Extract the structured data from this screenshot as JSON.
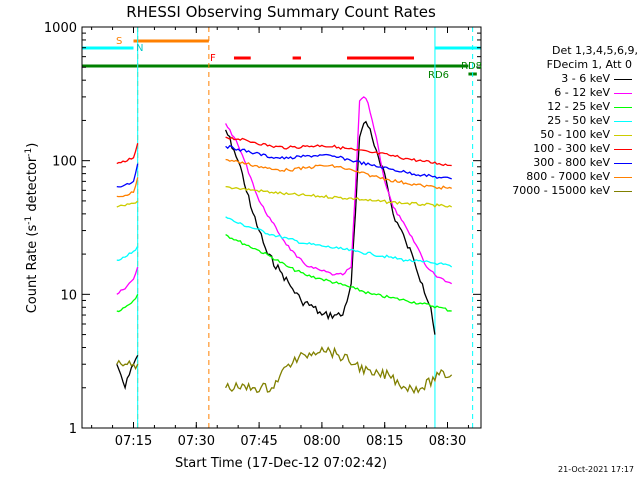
{
  "chart_data": {
    "type": "line",
    "title": "RHESSI Observing Summary Count Rates",
    "xlabel": "Start Time (17-Dec-12 07:02:42)",
    "ylabel": "Count Rate (s",
    "ylabel_sup": "-1",
    "ylabel_tail": " detector",
    "ylabel_close": ")",
    "y_scale": "log",
    "ylim": [
      1,
      1000
    ],
    "xlim": [
      "07:02:42",
      "08:38:00"
    ],
    "x_ticks": [
      "07:15",
      "07:30",
      "07:45",
      "08:00",
      "08:15",
      "08:30"
    ],
    "y_ticks": [
      "1",
      "10",
      "100",
      "1000"
    ],
    "legend_header": [
      "Det 1,3,4,5,6,9,",
      "FDecim 1, Att 0"
    ],
    "timestamp": "21-Oct-2021 17:17",
    "flags": {
      "S": {
        "label": "S",
        "color": "#ff8000",
        "start": "07:15",
        "end": "07:33"
      },
      "N": {
        "label": "N",
        "color": "#00ffff",
        "start": "07:02",
        "end": "07:15"
      },
      "F": {
        "label": "F",
        "color": "#ff0000",
        "segments": [
          [
            "07:39",
            "07:43"
          ],
          [
            "07:53",
            "07:55"
          ],
          [
            "08:06",
            "08:22"
          ]
        ]
      },
      "RD8": {
        "label": "RD8",
        "color": "#008000",
        "start": "07:02",
        "end": "08:35"
      },
      "RD6": {
        "label": "RD6",
        "color": "#008000",
        "start": "08:35",
        "end": "08:37"
      }
    },
    "markers": {
      "orange_dashed": [
        "07:16",
        "07:33"
      ],
      "cyan_solid": [
        "07:16",
        "08:27"
      ],
      "cyan_dashed": [
        "08:36"
      ]
    },
    "series": [
      {
        "name": "3 - 6 keV",
        "color": "#000000",
        "x": [
          "07:11",
          "07:12",
          "07:13",
          "07:14",
          "07:15",
          "07:16",
          "07:37",
          "07:39",
          "07:41",
          "07:43",
          "07:45",
          "07:47",
          "07:50",
          "07:53",
          "07:55",
          "07:58",
          "08:00",
          "08:03",
          "08:05",
          "08:07",
          "08:08",
          "08:09",
          "08:10",
          "08:11",
          "08:13",
          "08:15",
          "08:17",
          "08:20",
          "08:22",
          "08:24",
          "08:26",
          "08:27"
        ],
        "y": [
          3,
          2.5,
          2,
          2.5,
          3,
          3.5,
          170,
          120,
          80,
          45,
          30,
          20,
          15,
          11,
          9,
          8,
          7,
          7,
          7,
          12,
          40,
          150,
          190,
          180,
          120,
          80,
          40,
          25,
          18,
          12,
          8,
          5
        ]
      },
      {
        "name": "6 - 12 keV",
        "color": "#ff00ff",
        "x": [
          "07:11",
          "07:13",
          "07:15",
          "07:16",
          "07:37",
          "07:39",
          "07:41",
          "07:43",
          "07:45",
          "07:48",
          "07:51",
          "07:54",
          "07:57",
          "08:00",
          "08:03",
          "08:05",
          "08:07",
          "08:08",
          "08:09",
          "08:10",
          "08:11",
          "08:13",
          "08:15",
          "08:17",
          "08:19",
          "08:21",
          "08:23",
          "08:25",
          "08:27",
          "08:29",
          "08:31"
        ],
        "y": [
          10,
          11,
          13,
          16,
          190,
          150,
          110,
          75,
          50,
          35,
          25,
          19,
          16,
          15,
          14,
          14,
          16,
          60,
          280,
          300,
          270,
          150,
          70,
          45,
          36,
          28,
          22,
          16,
          14,
          13,
          12
        ]
      },
      {
        "name": "12 - 25 keV",
        "color": "#00ff00",
        "x": [
          "07:11",
          "07:13",
          "07:15",
          "07:16",
          "07:37",
          "07:40",
          "07:44",
          "07:48",
          "07:52",
          "07:56",
          "08:00",
          "08:04",
          "08:08",
          "08:12",
          "08:16",
          "08:20",
          "08:24",
          "08:28",
          "08:31"
        ],
        "y": [
          7.5,
          8,
          9,
          10,
          28,
          25,
          22,
          19,
          16,
          14,
          13,
          12,
          11,
          10,
          9.5,
          9,
          8.5,
          8,
          7.5
        ]
      },
      {
        "name": "25 - 50 keV",
        "color": "#00ffff",
        "x": [
          "07:11",
          "07:13",
          "07:15",
          "07:16",
          "07:37",
          "07:40",
          "07:44",
          "07:48",
          "07:52",
          "07:56",
          "08:00",
          "08:04",
          "08:08",
          "08:12",
          "08:16",
          "08:20",
          "08:24",
          "08:28",
          "08:31"
        ],
        "y": [
          18,
          19,
          21,
          23,
          38,
          34,
          31,
          28,
          26,
          24,
          23,
          22,
          21,
          20,
          19,
          18,
          17.5,
          17,
          16
        ]
      },
      {
        "name": "50 - 100 keV",
        "color": "#cccc00",
        "x": [
          "07:11",
          "07:13",
          "07:15",
          "07:16",
          "07:37",
          "07:40",
          "07:44",
          "07:48",
          "07:52",
          "07:56",
          "08:00",
          "08:04",
          "08:08",
          "08:12",
          "08:16",
          "08:20",
          "08:24",
          "08:28",
          "08:31"
        ],
        "y": [
          45,
          46,
          48,
          50,
          64,
          62,
          60,
          58,
          56,
          55,
          54,
          53,
          52,
          50,
          49,
          48,
          47,
          46,
          45
        ]
      },
      {
        "name": "100 - 300 keV",
        "color": "#ff0000",
        "x": [
          "07:11",
          "07:13",
          "07:15",
          "07:16",
          "07:37",
          "07:40",
          "07:44",
          "07:48",
          "07:52",
          "07:56",
          "08:00",
          "08:04",
          "08:08",
          "08:12",
          "08:16",
          "08:20",
          "08:24",
          "08:28",
          "08:31"
        ],
        "y": [
          95,
          98,
          105,
          135,
          150,
          145,
          137,
          128,
          125,
          128,
          130,
          126,
          120,
          115,
          110,
          104,
          99,
          95,
          92
        ]
      },
      {
        "name": "300 - 800 keV",
        "color": "#0000ff",
        "x": [
          "07:11",
          "07:13",
          "07:15",
          "07:16",
          "07:37",
          "07:40",
          "07:44",
          "07:48",
          "07:52",
          "07:56",
          "08:00",
          "08:04",
          "08:08",
          "08:12",
          "08:16",
          "08:20",
          "08:24",
          "08:28",
          "08:31"
        ],
        "y": [
          64,
          66,
          70,
          95,
          128,
          122,
          114,
          106,
          104,
          108,
          110,
          106,
          99,
          92,
          87,
          82,
          78,
          75,
          73
        ]
      },
      {
        "name": "800 - 7000 keV",
        "color": "#ff8000",
        "x": [
          "07:11",
          "07:13",
          "07:15",
          "07:16",
          "07:37",
          "07:40",
          "07:44",
          "07:48",
          "07:52",
          "07:56",
          "08:00",
          "08:04",
          "08:08",
          "08:12",
          "08:16",
          "08:20",
          "08:24",
          "08:28",
          "08:31"
        ],
        "y": [
          54,
          55,
          58,
          75,
          102,
          98,
          92,
          86,
          85,
          88,
          92,
          90,
          83,
          77,
          72,
          68,
          65,
          63,
          62
        ]
      },
      {
        "name": "7000 - 15000 keV",
        "color": "#808000",
        "x": [
          "07:11",
          "07:13",
          "07:15",
          "07:16",
          "07:37",
          "07:40",
          "07:44",
          "07:48",
          "07:52",
          "07:56",
          "08:00",
          "08:04",
          "08:08",
          "08:12",
          "08:16",
          "08:20",
          "08:24",
          "08:28",
          "08:31"
        ],
        "y": [
          3,
          3,
          3,
          3,
          2,
          2,
          2,
          2,
          3,
          3.5,
          4,
          3.5,
          3,
          2.5,
          2.5,
          2,
          2,
          2.5,
          2.5
        ]
      }
    ]
  }
}
